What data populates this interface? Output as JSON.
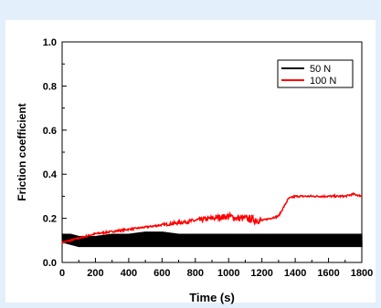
{
  "colors": {
    "frame_background": "#e3f0fb",
    "panel_background": "#ffffff",
    "axis": "#000000",
    "series_50N": "#000000",
    "series_100N": "#ff0000"
  },
  "chart_data": {
    "type": "line",
    "title": "",
    "xlabel": "Time (s)",
    "ylabel": "Friction coefficient",
    "xlim": [
      0,
      1800
    ],
    "ylim": [
      0.0,
      1.0
    ],
    "xticks": [
      0,
      200,
      400,
      600,
      800,
      1000,
      1200,
      1400,
      1600,
      1800
    ],
    "yticks": [
      0.0,
      0.2,
      0.4,
      0.6,
      0.8,
      1.0
    ],
    "xtick_labels": [
      "0",
      "200",
      "400",
      "600",
      "800",
      "1000",
      "1200",
      "1400",
      "1600",
      "1800"
    ],
    "ytick_labels": [
      "0.0",
      "0.2",
      "0.4",
      "0.6",
      "0.8",
      "1.0"
    ],
    "grid": false,
    "legend_position": "top-right",
    "legend": [
      "50 N",
      "100 N"
    ],
    "series": [
      {
        "name": "50 N",
        "color": "#000000",
        "style": "dense oscillating band",
        "x": [
          0,
          50,
          100,
          200,
          300,
          400,
          500,
          600,
          700,
          800,
          900,
          1000,
          1100,
          1200,
          1300,
          1400,
          1500,
          1600,
          1700,
          1800
        ],
        "low": [
          0.09,
          0.08,
          0.07,
          0.07,
          0.07,
          0.07,
          0.07,
          0.07,
          0.07,
          0.07,
          0.07,
          0.07,
          0.07,
          0.07,
          0.07,
          0.07,
          0.07,
          0.07,
          0.07,
          0.07
        ],
        "high": [
          0.13,
          0.13,
          0.12,
          0.12,
          0.13,
          0.13,
          0.14,
          0.14,
          0.13,
          0.13,
          0.13,
          0.13,
          0.13,
          0.13,
          0.13,
          0.13,
          0.13,
          0.13,
          0.13,
          0.13
        ]
      },
      {
        "name": "100 N",
        "color": "#ff0000",
        "style": "line",
        "x": [
          0,
          50,
          100,
          150,
          200,
          300,
          400,
          500,
          600,
          700,
          800,
          900,
          1000,
          1050,
          1100,
          1200,
          1250,
          1300,
          1330,
          1360,
          1400,
          1500,
          1600,
          1700,
          1750,
          1800
        ],
        "y": [
          0.09,
          0.1,
          0.11,
          0.12,
          0.13,
          0.14,
          0.15,
          0.16,
          0.17,
          0.18,
          0.19,
          0.2,
          0.21,
          0.2,
          0.2,
          0.19,
          0.2,
          0.21,
          0.25,
          0.29,
          0.3,
          0.3,
          0.3,
          0.3,
          0.31,
          0.3
        ]
      }
    ]
  }
}
